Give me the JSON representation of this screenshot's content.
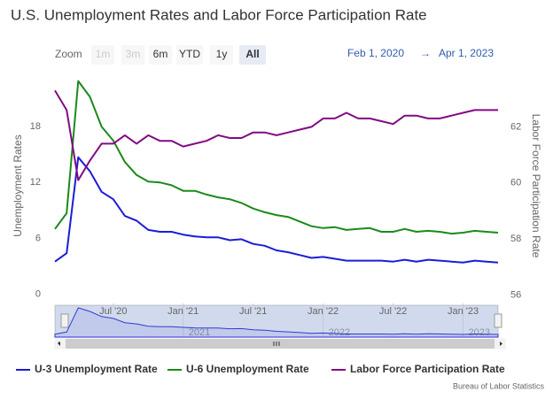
{
  "chart_data": {
    "type": "line",
    "title": "U.S. Unemployment Rates and Labor Force Participation Rate",
    "range_selector": {
      "label": "Zoom",
      "buttons": [
        {
          "text": "1m",
          "enabled": false
        },
        {
          "text": "3m",
          "enabled": false
        },
        {
          "text": "6m",
          "enabled": true
        },
        {
          "text": "YTD",
          "enabled": true
        },
        {
          "text": "1y",
          "enabled": true
        },
        {
          "text": "All",
          "enabled": true
        }
      ],
      "selected": 5,
      "from": "Feb 1, 2020",
      "separator": "→",
      "to": "Apr 1, 2023"
    },
    "x": [
      "2020-02",
      "2020-03",
      "2020-04",
      "2020-05",
      "2020-06",
      "2020-07",
      "2020-08",
      "2020-09",
      "2020-10",
      "2020-11",
      "2020-12",
      "2021-01",
      "2021-02",
      "2021-03",
      "2021-04",
      "2021-05",
      "2021-06",
      "2021-07",
      "2021-08",
      "2021-09",
      "2021-10",
      "2021-11",
      "2021-12",
      "2022-01",
      "2022-02",
      "2022-03",
      "2022-04",
      "2022-05",
      "2022-06",
      "2022-07",
      "2022-08",
      "2022-09",
      "2022-10",
      "2022-11",
      "2022-12",
      "2023-01",
      "2023-02",
      "2023-03",
      "2023-04"
    ],
    "xticks": [
      {
        "value": "2020-07",
        "label": "Jul '20"
      },
      {
        "value": "2021-01",
        "label": "Jan '21"
      },
      {
        "value": "2021-07",
        "label": "Jul '21"
      },
      {
        "value": "2022-01",
        "label": "Jan '22"
      },
      {
        "value": "2022-07",
        "label": "Jul '22"
      },
      {
        "value": "2023-01",
        "label": "Jan '23"
      }
    ],
    "navigator_ticks": [
      {
        "value": "2021-01",
        "label": "2021"
      },
      {
        "value": "2022-01",
        "label": "2022"
      },
      {
        "value": "2023-01",
        "label": "2023"
      }
    ],
    "ylabel": "Unemployment Rates",
    "ylim": [
      -1,
      24
    ],
    "yticks": [
      0,
      6,
      12,
      18
    ],
    "y2label": "Labor Force Participation Rate",
    "y2lim": [
      55.7,
      64
    ],
    "y2ticks": [
      56,
      58,
      60,
      62
    ],
    "series": [
      {
        "name": "U-3 Unemployment Rate",
        "color": "#1c1cd8",
        "values": [
          3.5,
          4.4,
          14.7,
          13.2,
          11.0,
          10.2,
          8.4,
          7.9,
          6.9,
          6.7,
          6.7,
          6.4,
          6.2,
          6.1,
          6.1,
          5.8,
          5.9,
          5.4,
          5.2,
          4.7,
          4.5,
          4.2,
          3.9,
          4.0,
          3.8,
          3.6,
          3.6,
          3.6,
          3.6,
          3.5,
          3.7,
          3.5,
          3.7,
          3.6,
          3.5,
          3.4,
          3.6,
          3.5,
          3.4
        ]
      },
      {
        "name": "U-6 Unemployment Rate",
        "color": "#1b8a1b",
        "values": [
          7.0,
          8.7,
          22.9,
          21.2,
          18.0,
          16.5,
          14.2,
          12.8,
          12.1,
          12.0,
          11.7,
          11.1,
          11.1,
          10.7,
          10.4,
          10.2,
          9.8,
          9.2,
          8.8,
          8.5,
          8.3,
          7.8,
          7.3,
          7.1,
          7.2,
          6.9,
          7.0,
          7.1,
          6.7,
          6.7,
          7.0,
          6.7,
          6.8,
          6.7,
          6.5,
          6.6,
          6.8,
          6.7,
          6.6
        ]
      },
      {
        "name": "Labor Force Participation Rate",
        "color": "#820a82",
        "axis": "y2",
        "values": [
          63.3,
          62.6,
          60.1,
          60.8,
          61.4,
          61.4,
          61.7,
          61.4,
          61.7,
          61.5,
          61.5,
          61.3,
          61.4,
          61.5,
          61.7,
          61.6,
          61.6,
          61.8,
          61.8,
          61.7,
          61.8,
          61.9,
          62.0,
          62.3,
          62.3,
          62.5,
          62.3,
          62.3,
          62.2,
          62.1,
          62.4,
          62.4,
          62.3,
          62.3,
          62.4,
          62.5,
          62.6,
          62.6,
          62.6
        ]
      }
    ],
    "credits": "Bureau of Labor Statistics"
  }
}
